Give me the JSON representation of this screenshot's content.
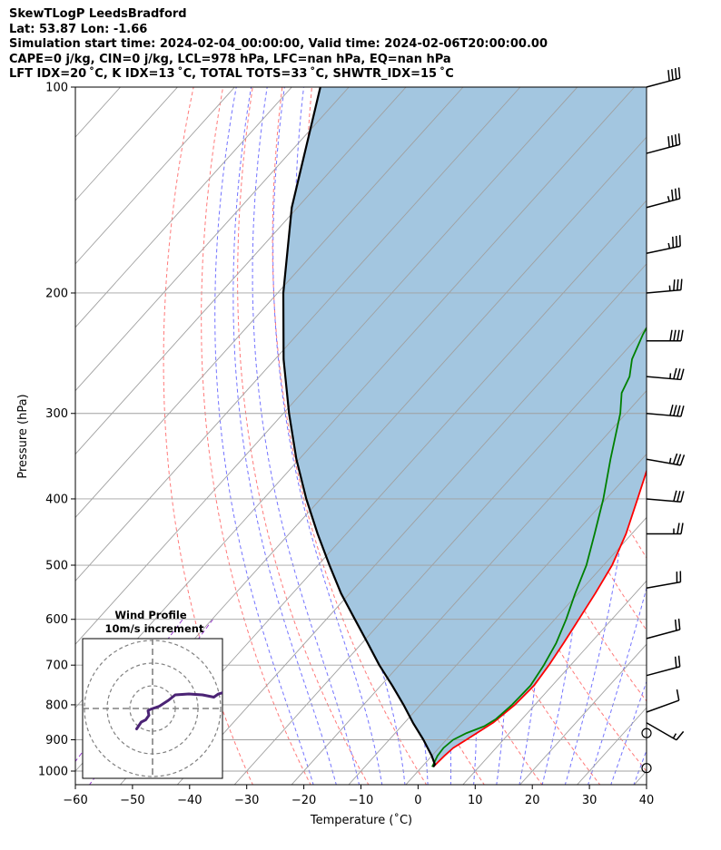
{
  "header": {
    "line1": "SkewTLogP LeedsBradford",
    "line2": "Lat: 53.87   Lon: -1.66",
    "line3": "Simulation start time: 2024-02-04_00:00:00, Valid time: 2024-02-06T20:00:00.00",
    "line4": "CAPE=0 j/kg, CIN=0 j/kg, LCL=978 hPa, LFC=nan hPa, EQ=nan hPa",
    "line5": "LFT IDX=20 ˚C, K IDX=13 ˚C, TOTAL TOTS=33 ˚C, SHWTR_IDX=15 ˚C"
  },
  "colors": {
    "temperature": "#ff0000",
    "dewpoint": "#008000",
    "parcel": "#000000",
    "shading": "#a3c6e0",
    "isotherm": "#a0a0a0",
    "dry_adiabat": "#ff6b6b",
    "moist_adiabat": "#5a5aff",
    "mixing_ratio": "#9a3fd0",
    "hodograph": "#4b2375"
  },
  "chart_data": [
    {
      "type": "line",
      "xlabel": "Temperature (˚C)",
      "ylabel": "Pressure (hPa)",
      "xlim": [
        -60,
        40
      ],
      "ylim": [
        1050,
        100
      ],
      "y_scale": "log",
      "skew": true,
      "x_ticks": [
        -60,
        -50,
        -40,
        -30,
        -20,
        -10,
        0,
        10,
        20,
        30,
        40
      ],
      "y_ticks": [
        1000,
        900,
        800,
        700,
        600,
        500,
        400,
        300,
        200,
        100
      ],
      "grid": true,
      "series": [
        {
          "key": "temperature",
          "points": [
            [
              986,
              2.0
            ],
            [
              950,
              2.2
            ],
            [
              925,
              2.5
            ],
            [
              900,
              3.5
            ],
            [
              850,
              5.5
            ],
            [
              800,
              6.5
            ],
            [
              750,
              6.8
            ],
            [
              700,
              6.2
            ],
            [
              650,
              5.3
            ],
            [
              600,
              4.2
            ],
            [
              550,
              3.0
            ],
            [
              500,
              1.5
            ],
            [
              450,
              -1.0
            ],
            [
              400,
              -4.5
            ],
            [
              350,
              -8.5
            ],
            [
              300,
              -13.5
            ],
            [
              270,
              -17.0
            ],
            [
              250,
              -20.0
            ],
            [
              240,
              -21.3
            ],
            [
              230,
              -21.8
            ],
            [
              220,
              -21.5
            ],
            [
              210,
              -21.0
            ],
            [
              200,
              -19.9
            ],
            [
              185,
              -18.0
            ],
            [
              170,
              -16.0
            ],
            [
              150,
              -14.0
            ],
            [
              135,
              -12.8
            ],
            [
              120,
              -12.0
            ],
            [
              110,
              -12.2
            ],
            [
              100,
              -13.4
            ]
          ]
        },
        {
          "key": "dewpoint",
          "points": [
            [
              986,
              1.8
            ],
            [
              950,
              1.0
            ],
            [
              925,
              0.8
            ],
            [
              900,
              1.2
            ],
            [
              880,
              2.5
            ],
            [
              860,
              4.5
            ],
            [
              840,
              5.4
            ],
            [
              800,
              6.0
            ],
            [
              750,
              6.2
            ],
            [
              700,
              5.3
            ],
            [
              650,
              4.0
            ],
            [
              600,
              2.0
            ],
            [
              550,
              -0.5
            ],
            [
              500,
              -3.0
            ],
            [
              450,
              -6.5
            ],
            [
              400,
              -10.5
            ],
            [
              350,
              -15.5
            ],
            [
              300,
              -21.0
            ],
            [
              280,
              -24.0
            ],
            [
              265,
              -25.2
            ],
            [
              250,
              -27.5
            ],
            [
              230,
              -29.5
            ],
            [
              220,
              -30.3
            ],
            [
              205,
              -30.7
            ],
            [
              190,
              -30.0
            ],
            [
              175,
              -29.0
            ],
            [
              165,
              -29.5
            ],
            [
              150,
              -32.5
            ],
            [
              140,
              -34.5
            ],
            [
              130,
              -35.2
            ],
            [
              115,
              -32.5
            ],
            [
              100,
              -29.0
            ]
          ]
        },
        {
          "key": "parcel",
          "points": [
            [
              986,
              2.0
            ],
            [
              978,
              1.9
            ],
            [
              950,
              0.0
            ],
            [
              900,
              -4.0
            ],
            [
              850,
              -8.5
            ],
            [
              800,
              -13.0
            ],
            [
              750,
              -18.0
            ],
            [
              700,
              -23.5
            ],
            [
              650,
              -29.0
            ],
            [
              600,
              -35.0
            ],
            [
              550,
              -41.5
            ],
            [
              500,
              -48.0
            ],
            [
              450,
              -55.0
            ],
            [
              400,
              -62.5
            ],
            [
              350,
              -70.5
            ],
            [
              300,
              -79.0
            ],
            [
              250,
              -88.5
            ],
            [
              200,
              -99.0
            ],
            [
              150,
              -111.0
            ],
            [
              100,
              -125.0
            ]
          ]
        }
      ],
      "fill_between": [
        "parcel",
        "temperature"
      ],
      "wind_barbs": [
        {
          "p": 100,
          "speed": 40,
          "dir": 75
        },
        {
          "p": 125,
          "speed": 40,
          "dir": 75
        },
        {
          "p": 150,
          "speed": 35,
          "dir": 75
        },
        {
          "p": 175,
          "speed": 35,
          "dir": 78
        },
        {
          "p": 200,
          "speed": 35,
          "dir": 85
        },
        {
          "p": 235,
          "speed": 40,
          "dir": 90
        },
        {
          "p": 265,
          "speed": 35,
          "dir": 95
        },
        {
          "p": 300,
          "speed": 40,
          "dir": 95
        },
        {
          "p": 350,
          "speed": 35,
          "dir": 100
        },
        {
          "p": 400,
          "speed": 30,
          "dir": 95
        },
        {
          "p": 450,
          "speed": 25,
          "dir": 90
        },
        {
          "p": 540,
          "speed": 20,
          "dir": 80
        },
        {
          "p": 640,
          "speed": 20,
          "dir": 75
        },
        {
          "p": 725,
          "speed": 20,
          "dir": 75
        },
        {
          "p": 820,
          "speed": 10,
          "dir": 70
        },
        {
          "p": 850,
          "speed": 15,
          "dir": 120
        },
        {
          "p": 880,
          "speed": 0,
          "dir": 0
        },
        {
          "p": 990,
          "speed": 0,
          "dir": 0
        }
      ]
    },
    {
      "type": "line",
      "title": "Wind Profile",
      "subtitle": "10m/s increment",
      "hodograph_uv": [
        [
          -3.5,
          -4.5
        ],
        [
          -2.5,
          -3.0
        ],
        [
          -1.5,
          -2.5
        ],
        [
          -0.8,
          -1.5
        ],
        [
          -1.0,
          -0.5
        ],
        [
          -0.5,
          -0.2
        ],
        [
          1.5,
          0.5
        ],
        [
          3.5,
          1.8
        ],
        [
          5.0,
          3.0
        ],
        [
          8.0,
          3.2
        ],
        [
          11.0,
          3.0
        ],
        [
          13.5,
          2.5
        ],
        [
          14.5,
          3.2
        ],
        [
          15.5,
          3.5
        ]
      ]
    }
  ]
}
